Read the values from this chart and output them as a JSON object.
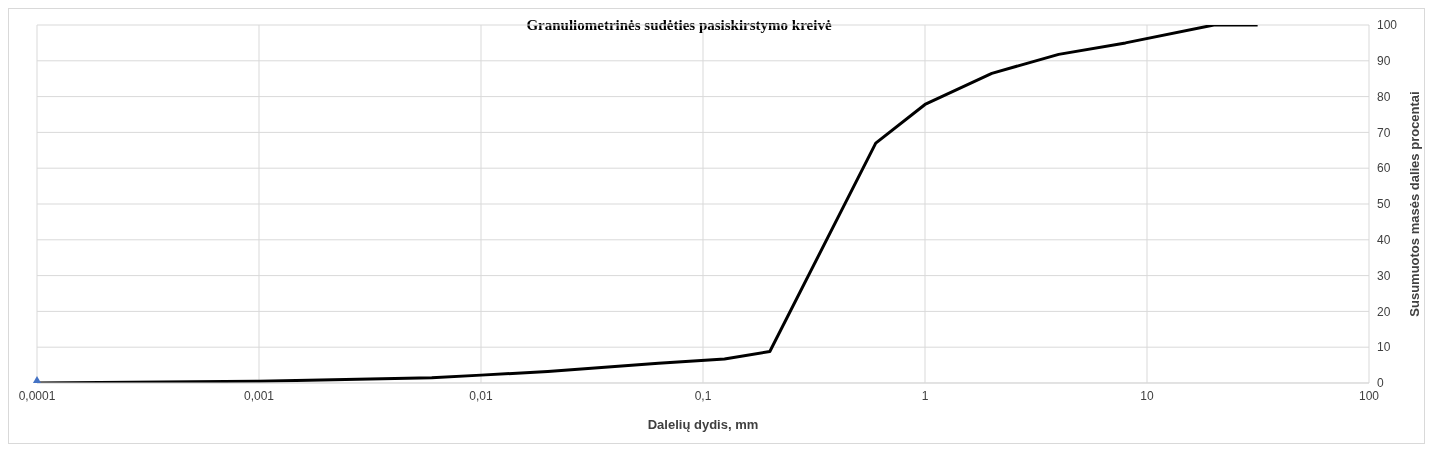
{
  "chart_data": {
    "type": "line",
    "title": "Granuliometrinės sudėties pasiskirstymo kreivė",
    "xlabel": "Dalelių dydis, mm",
    "ylabel": "Susumuotos masės dalies procentai",
    "log": "x",
    "grid": true,
    "legend": false,
    "line_style": "solid",
    "xlim": [
      0.0001,
      100
    ],
    "xticks": [
      {
        "value": 0.0001,
        "label": "0,0001"
      },
      {
        "value": 0.001,
        "label": "0,001"
      },
      {
        "value": 0.01,
        "label": "0,01"
      },
      {
        "value": 0.1,
        "label": "0,1"
      },
      {
        "value": 1,
        "label": "1"
      },
      {
        "value": 10,
        "label": "10"
      },
      {
        "value": 100,
        "label": "100"
      }
    ],
    "ylim": [
      0,
      100
    ],
    "yticks": [
      0,
      10,
      20,
      30,
      40,
      50,
      60,
      70,
      80,
      90,
      100
    ],
    "series": [
      {
        "color": "#000000",
        "marker": "none",
        "x": [
          0.0001,
          0.001,
          0.006,
          0.01,
          0.02,
          0.063,
          0.125,
          0.2,
          0.6,
          1,
          2,
          4,
          8,
          20,
          31.5
        ],
        "values": [
          0,
          0.5,
          1.5,
          2.2,
          3.2,
          5.5,
          6.7,
          8.8,
          67,
          77.8,
          86.5,
          91.8,
          95,
          100,
          100
        ]
      },
      {
        "type": "scatter",
        "color": "#4472c4",
        "marker": "triangle",
        "x": [
          0.0001
        ],
        "values": [
          0
        ]
      }
    ]
  }
}
